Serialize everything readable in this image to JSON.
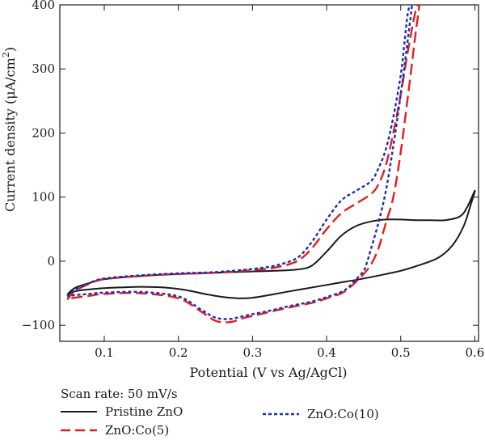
{
  "chart_data": {
    "type": "line",
    "xlabel": "Potential (V vs Ag/AgCl)",
    "ylabel_parts": [
      "Current density (μA/cm",
      "2",
      ")"
    ],
    "xlim": [
      0.04,
      0.605
    ],
    "ylim": [
      -125,
      400
    ],
    "xticks": [
      0.1,
      0.2,
      0.3,
      0.4,
      0.5,
      0.6
    ],
    "xtick_labels": [
      "0.1",
      "0.2",
      "0.3",
      "0.4",
      "0.5",
      "0.6"
    ],
    "yticks": [
      -100,
      0,
      100,
      200,
      300,
      400
    ],
    "ytick_labels": [
      "−100",
      "0",
      "100",
      "200",
      "300",
      "400"
    ],
    "legend_title": "Scan rate: 50 mV/s",
    "series": [
      {
        "name": "Pristine ZnO",
        "color": "#1a1a1a",
        "dash": "solid",
        "x": [
          0.05,
          0.06,
          0.08,
          0.1,
          0.15,
          0.2,
          0.25,
          0.3,
          0.33,
          0.36,
          0.38,
          0.4,
          0.42,
          0.44,
          0.46,
          0.48,
          0.5,
          0.52,
          0.54,
          0.56,
          0.58,
          0.59,
          0.6,
          0.595,
          0.585,
          0.57,
          0.55,
          0.52,
          0.5,
          0.48,
          0.45,
          0.42,
          0.4,
          0.35,
          0.3,
          0.27,
          0.24,
          0.21,
          0.18,
          0.15,
          0.12,
          0.1,
          0.08,
          0.06,
          0.05
        ],
        "y": [
          -52,
          -42,
          -34,
          -28,
          -23,
          -20,
          -18,
          -16,
          -15,
          -13,
          -7,
          15,
          40,
          55,
          62,
          65,
          65,
          64,
          64,
          64,
          70,
          85,
          110,
          90,
          55,
          25,
          5,
          -8,
          -15,
          -20,
          -27,
          -33,
          -37,
          -47,
          -57,
          -57,
          -52,
          -45,
          -41,
          -40,
          -41,
          -42,
          -44,
          -47,
          -52
        ]
      },
      {
        "name": "ZnO:Co(5)",
        "color": "#e02020",
        "dash": "long",
        "x": [
          0.05,
          0.06,
          0.08,
          0.1,
          0.15,
          0.2,
          0.25,
          0.3,
          0.33,
          0.36,
          0.38,
          0.4,
          0.42,
          0.44,
          0.46,
          0.47,
          0.48,
          0.49,
          0.5,
          0.51,
          0.52,
          0.525,
          0.52,
          0.51,
          0.5,
          0.49,
          0.48,
          0.47,
          0.46,
          0.45,
          0.44,
          0.43,
          0.42,
          0.4,
          0.38,
          0.35,
          0.32,
          0.29,
          0.27,
          0.25,
          0.23,
          0.2,
          0.15,
          0.1,
          0.08,
          0.06,
          0.05
        ],
        "y": [
          -60,
          -47,
          -35,
          -28,
          -23,
          -20,
          -18,
          -14,
          -10,
          0,
          20,
          50,
          75,
          90,
          105,
          120,
          150,
          200,
          260,
          330,
          390,
          400,
          355,
          260,
          170,
          100,
          60,
          20,
          -5,
          -20,
          -32,
          -42,
          -50,
          -58,
          -65,
          -72,
          -80,
          -88,
          -95,
          -93,
          -78,
          -58,
          -50,
          -51,
          -54,
          -57,
          -60
        ]
      },
      {
        "name": "ZnO:Co(10)",
        "color": "#1c2fb5",
        "dash": "short",
        "x": [
          0.05,
          0.06,
          0.08,
          0.1,
          0.15,
          0.2,
          0.25,
          0.3,
          0.33,
          0.36,
          0.38,
          0.4,
          0.42,
          0.44,
          0.46,
          0.47,
          0.48,
          0.49,
          0.5,
          0.505,
          0.51,
          0.515,
          0.51,
          0.5,
          0.49,
          0.48,
          0.47,
          0.46,
          0.455,
          0.45,
          0.44,
          0.43,
          0.42,
          0.4,
          0.38,
          0.35,
          0.32,
          0.29,
          0.27,
          0.25,
          0.23,
          0.2,
          0.15,
          0.1,
          0.08,
          0.06,
          0.05
        ],
        "y": [
          -55,
          -45,
          -34,
          -27,
          -22,
          -19,
          -17,
          -12,
          -7,
          5,
          30,
          65,
          95,
          110,
          125,
          145,
          175,
          225,
          290,
          340,
          390,
          400,
          350,
          260,
          180,
          110,
          60,
          20,
          0,
          -15,
          -28,
          -40,
          -48,
          -56,
          -63,
          -70,
          -78,
          -85,
          -90,
          -88,
          -75,
          -55,
          -48,
          -49,
          -51,
          -53,
          -55
        ]
      }
    ]
  }
}
